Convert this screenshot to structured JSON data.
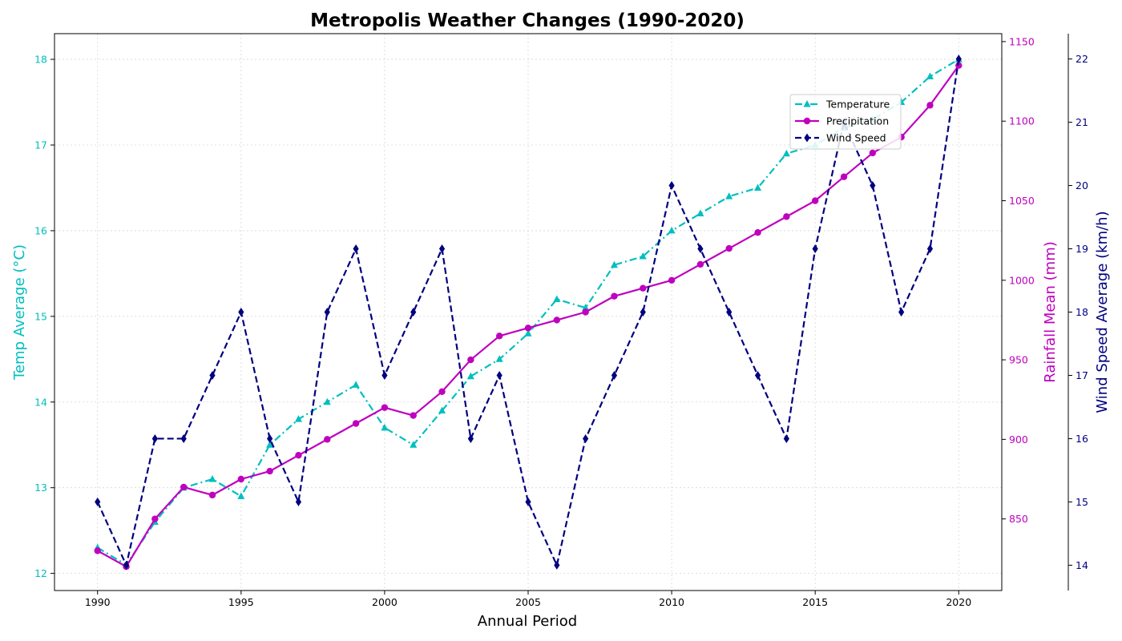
{
  "chart_data": {
    "type": "line",
    "title": "Metropolis Weather Changes (1990-2020)",
    "xlabel": "Annual Period",
    "x": [
      1990,
      1991,
      1992,
      1993,
      1994,
      1995,
      1996,
      1997,
      1998,
      1999,
      2000,
      2001,
      2002,
      2003,
      2004,
      2005,
      2006,
      2007,
      2008,
      2009,
      2010,
      2011,
      2012,
      2013,
      2014,
      2015,
      2016,
      2017,
      2018,
      2019,
      2020
    ],
    "xticks": [
      1990,
      1995,
      2000,
      2005,
      2010,
      2015,
      2020
    ],
    "xlim": [
      1988.5,
      2021.5
    ],
    "grid": true,
    "legend_position": "top-right",
    "axes": {
      "left": {
        "label": "Temp Average (°C)",
        "color": "#00bfbf",
        "ylim": [
          11.8,
          18.3
        ],
        "ticks": [
          12,
          13,
          14,
          15,
          16,
          17,
          18
        ]
      },
      "right1": {
        "label": "Rainfall Mean (mm)",
        "color": "#bf00bf",
        "ylim": [
          805,
          1155
        ],
        "ticks": [
          850,
          900,
          950,
          1000,
          1050,
          1100,
          1150
        ]
      },
      "right2": {
        "label": "Wind Speed Average (km/h)",
        "color": "#000080",
        "ylim": [
          13.6,
          22.4
        ],
        "ticks": [
          14,
          15,
          16,
          17,
          18,
          19,
          20,
          21,
          22
        ]
      }
    },
    "series": [
      {
        "name": "Temperature",
        "axis": "left",
        "color": "#00bfbf",
        "line_style": "dashdot",
        "marker": "triangle",
        "values": [
          12.3,
          12.1,
          12.6,
          13.0,
          13.1,
          12.9,
          13.5,
          13.8,
          14.0,
          14.2,
          13.7,
          13.5,
          13.9,
          14.3,
          14.5,
          14.8,
          15.2,
          15.1,
          15.6,
          15.7,
          16.0,
          16.2,
          16.4,
          16.5,
          16.9,
          17.0,
          17.2,
          17.3,
          17.5,
          17.8,
          18.0
        ]
      },
      {
        "name": "Precipitation",
        "axis": "right1",
        "color": "#bf00bf",
        "line_style": "solid",
        "marker": "circle",
        "values": [
          830,
          820,
          850,
          870,
          865,
          875,
          880,
          890,
          900,
          910,
          920,
          915,
          930,
          950,
          965,
          970,
          975,
          980,
          990,
          995,
          1000,
          1010,
          1020,
          1030,
          1040,
          1050,
          1065,
          1080,
          1090,
          1110,
          1135
        ]
      },
      {
        "name": "Wind Speed",
        "axis": "right2",
        "color": "#000080",
        "line_style": "dashed",
        "marker": "diamond",
        "values": [
          15,
          14,
          16,
          16,
          17,
          18,
          16,
          15,
          18,
          19,
          17,
          18,
          19,
          16,
          17,
          15,
          14,
          16,
          17,
          18,
          20,
          19,
          18,
          17,
          16,
          19,
          21,
          20,
          18,
          19,
          22
        ]
      }
    ]
  }
}
